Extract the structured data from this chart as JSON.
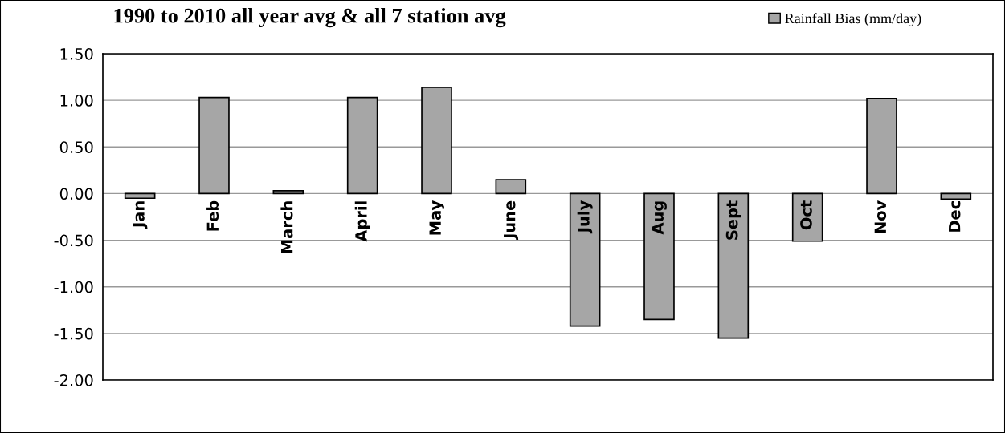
{
  "chart_data": {
    "type": "bar",
    "title": "1990 to 2010 all year avg & all 7 station avg",
    "categories": [
      "Jan",
      "Feb",
      "March",
      "April",
      "May",
      "June",
      "July",
      "Aug",
      "Sept",
      "Oct",
      "Nov",
      "Dec"
    ],
    "series": [
      {
        "name": "Rainfall Bias (mm/day)",
        "color": "#a6a6a6",
        "values": [
          -0.05,
          1.03,
          0.03,
          1.03,
          1.14,
          0.15,
          -1.42,
          -1.35,
          -1.55,
          -0.51,
          1.02,
          -0.06
        ]
      }
    ],
    "ylim": [
      -2.0,
      1.5
    ],
    "yticks": [
      {
        "value": -2.0,
        "label": "-2.00"
      },
      {
        "value": -1.5,
        "label": "-1.50"
      },
      {
        "value": -1.0,
        "label": "-1.00"
      },
      {
        "value": -0.5,
        "label": "-0.50"
      },
      {
        "value": 0.0,
        "label": "0.00"
      },
      {
        "value": 0.5,
        "label": "0.50"
      },
      {
        "value": 1.0,
        "label": "1.00"
      },
      {
        "value": 1.5,
        "label": "1.50"
      }
    ],
    "grid": "y",
    "legend": "top right"
  }
}
